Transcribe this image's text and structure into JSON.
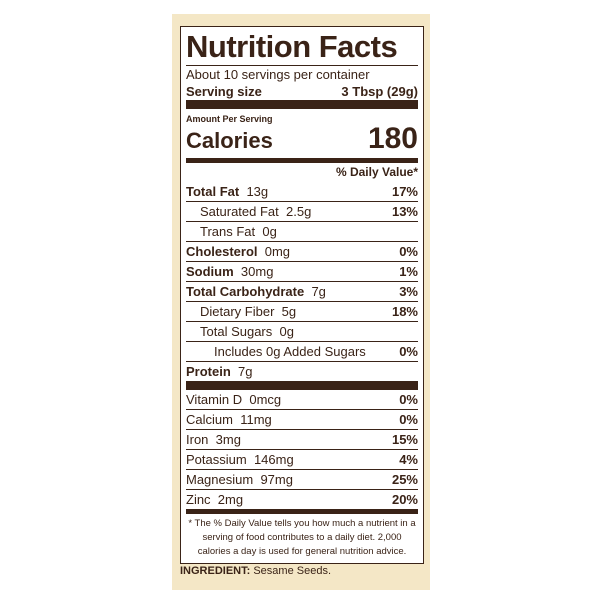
{
  "title": "Nutrition Facts",
  "servings": "About 10 servings per container",
  "serving_size": {
    "label": "Serving size",
    "value": "3 Tbsp (29g)"
  },
  "amount_per_serving": "Amount Per Serving",
  "calories": {
    "label": "Calories",
    "value": "180"
  },
  "daily_value_header": "% Daily Value*",
  "nutrients": [
    {
      "name": "Total Fat",
      "amount": "13g",
      "dv": "17%"
    },
    {
      "name": "Saturated Fat",
      "amount": "2.5g",
      "dv": "13%"
    },
    {
      "name": "Trans Fat",
      "amount": "0g"
    },
    {
      "name": "Cholesterol",
      "amount": "0mg",
      "dv": "0%"
    },
    {
      "name": "Sodium",
      "amount": "30mg",
      "dv": "1%"
    },
    {
      "name": "Total Carbohydrate",
      "amount": "7g",
      "dv": "3%"
    },
    {
      "name": "Dietary Fiber",
      "amount": "5g",
      "dv": "18%"
    },
    {
      "name": "Total Sugars",
      "amount": "0g"
    },
    {
      "name": "Includes 0g Added Sugars",
      "dv": "0%"
    },
    {
      "name": "Protein",
      "amount": "7g"
    }
  ],
  "vitamins": [
    {
      "name": "Vitamin D",
      "amount": "0mcg",
      "dv": "0%"
    },
    {
      "name": "Calcium",
      "amount": "11mg",
      "dv": "0%"
    },
    {
      "name": "Iron",
      "amount": "3mg",
      "dv": "15%"
    },
    {
      "name": "Potassium",
      "amount": "146mg",
      "dv": "4%"
    },
    {
      "name": "Magnesium",
      "amount": "97mg",
      "dv": "25%"
    },
    {
      "name": "Zinc",
      "amount": "2mg",
      "dv": "20%"
    }
  ],
  "footnote": "* The % Daily Value tells you how much a nutrient in a serving of food contributes to a daily diet. 2,000 calories a day is used for general nutrition advice.",
  "ingredients": {
    "label": "INGREDIENT:",
    "text": "Sesame Seeds."
  }
}
